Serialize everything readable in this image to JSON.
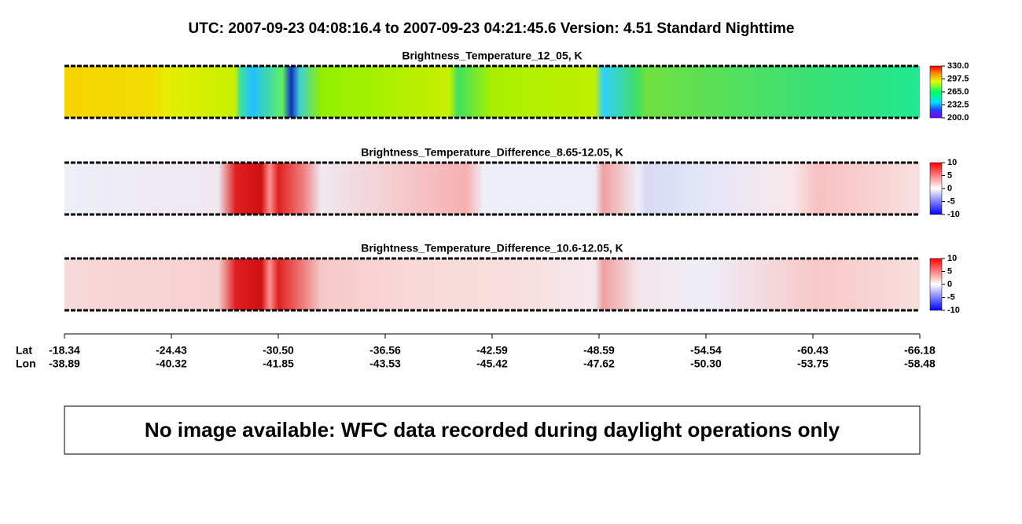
{
  "header": {
    "title": "UTC:  2007-09-23   04:08:16.4  to  2007-09-23   04:21:45.6    Version: 4.51  Standard Nighttime"
  },
  "panels": [
    {
      "title": "Brightness_Temperature_12_05, K",
      "colorbar_ticks": [
        {
          "value": 330,
          "label": "330.0"
        },
        {
          "value": 297.5,
          "label": "297.5"
        },
        {
          "value": 265,
          "label": "265.0"
        },
        {
          "value": 232.5,
          "label": "232.5"
        },
        {
          "value": 200,
          "label": "200.0"
        }
      ]
    },
    {
      "title": "Brightness_Temperature_Difference_8.65-12.05, K",
      "colorbar_ticks": [
        10,
        5,
        0,
        -5,
        -10
      ]
    },
    {
      "title": "Brightness_Temperature_Difference_10.6-12.05, K",
      "colorbar_ticks": [
        10,
        5,
        0,
        -5,
        -10
      ]
    }
  ],
  "axis": {
    "lat_label": "Lat",
    "lon_label": "Lon",
    "lat": [
      "-18.34",
      "-24.43",
      "-30.50",
      "-36.56",
      "-42.59",
      "-48.59",
      "-54.54",
      "-60.43",
      "-66.18"
    ],
    "lon": [
      "-38.89",
      "-40.32",
      "-41.85",
      "-43.53",
      "-45.42",
      "-47.62",
      "-50.30",
      "-53.75",
      "-58.48"
    ]
  },
  "message": "No image available: WFC data recorded during daylight operations only"
}
